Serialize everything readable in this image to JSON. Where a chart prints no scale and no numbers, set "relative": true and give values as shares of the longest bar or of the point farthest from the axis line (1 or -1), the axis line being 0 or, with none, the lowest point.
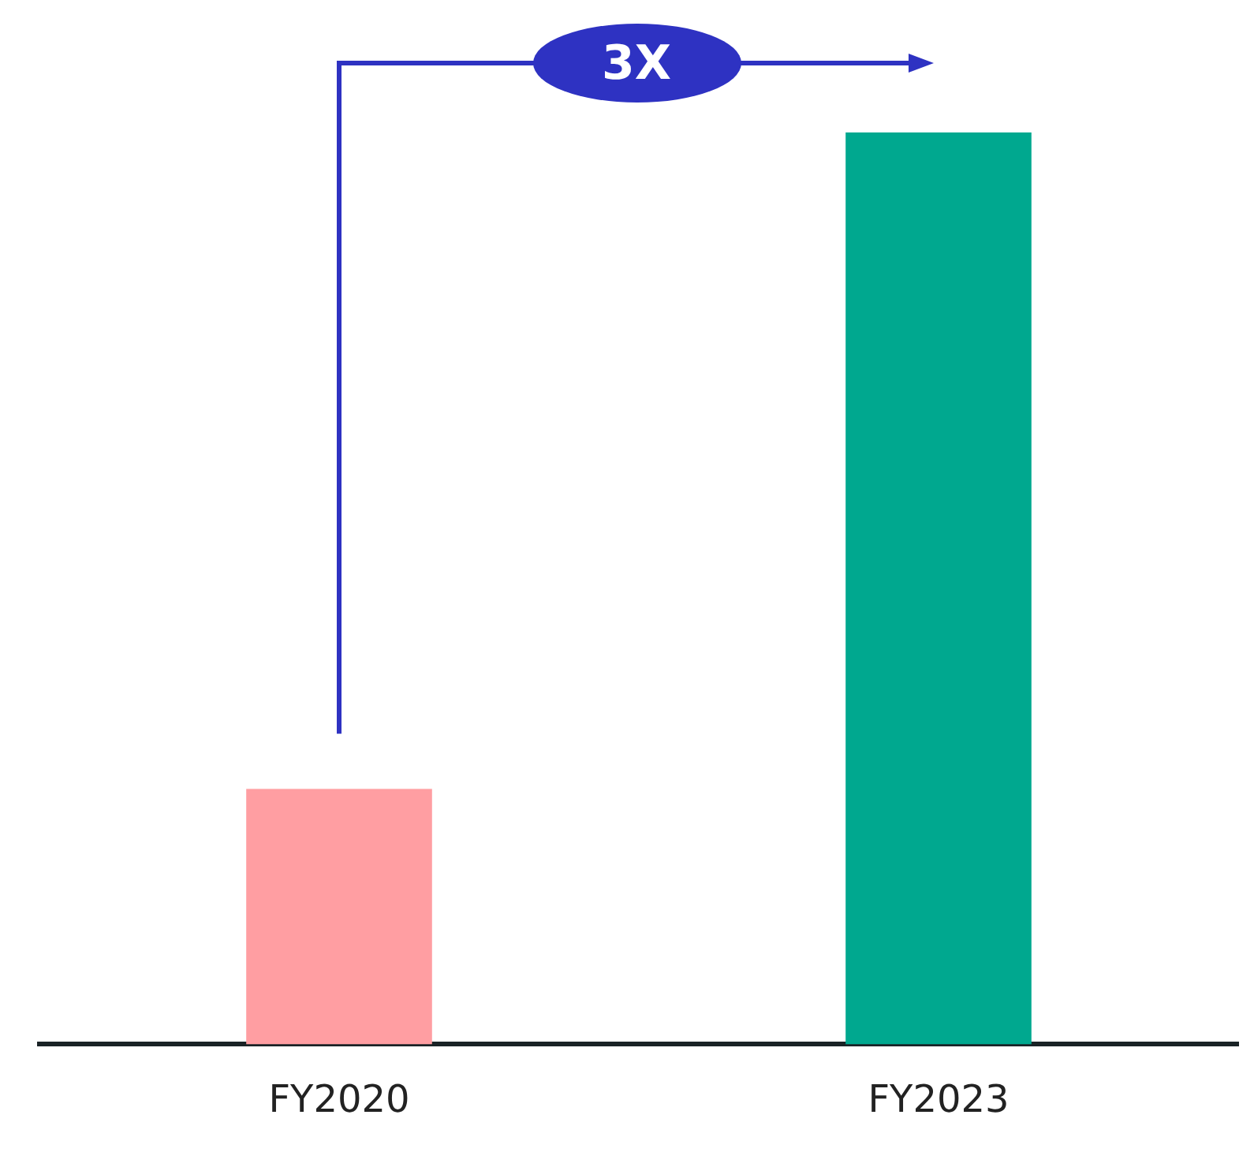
{
  "chart_data": {
    "type": "bar",
    "relative": true,
    "categories": [
      "FY2020",
      "FY2023"
    ],
    "values": [
      0.28,
      1
    ],
    "colors": [
      "#ff9ea2",
      "#00a88f"
    ],
    "annotations": [
      "3X"
    ],
    "grid": false,
    "legend": false
  }
}
